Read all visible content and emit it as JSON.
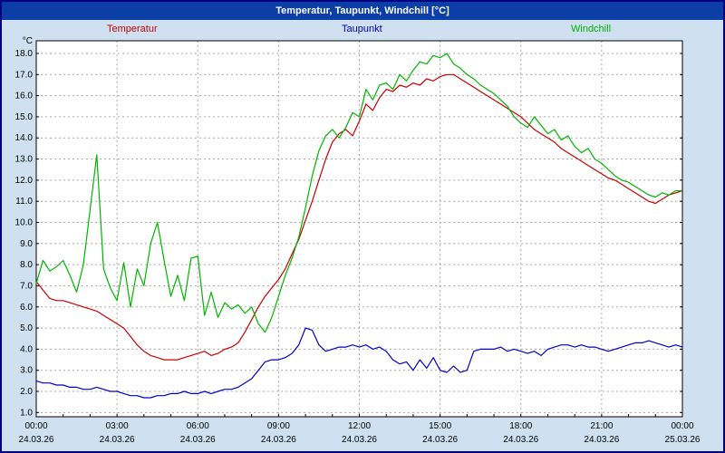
{
  "title": "Temperatur, Taupunkt, Windchill [°C]",
  "legend": [
    {
      "label": "Temperatur",
      "color": "#c80000"
    },
    {
      "label": "Taupunkt",
      "color": "#0000c8"
    },
    {
      "label": "Windchill",
      "color": "#00b400"
    }
  ],
  "colors": {
    "titlebar_bg": "#0b3ea6",
    "titlebar_text": "#ffffff",
    "window_bg": "#cfe0f1",
    "border": "#000080",
    "grid": "#a8a8a8",
    "plot_bg": "#ffffff",
    "axis_text": "#000000"
  },
  "chart_data": {
    "type": "line",
    "title": "Temperatur, Taupunkt, Windchill [°C]",
    "ylabel": "°C",
    "ylim": [
      0.8,
      18.6
    ],
    "yticks": [
      1,
      2,
      3,
      4,
      5,
      6,
      7,
      8,
      9,
      10,
      11,
      12,
      13,
      14,
      15,
      16,
      17,
      18
    ],
    "ytick_format_decimals": 1,
    "grid": true,
    "x_start_hour": 0,
    "x_step_hours": 0.25,
    "x_total_hours": 24,
    "x_tick_labels": [
      "00:00",
      "03:00",
      "06:00",
      "09:00",
      "12:00",
      "15:00",
      "18:00",
      "21:00",
      "00:00"
    ],
    "x_tick_dates": [
      "24.03.26",
      "24.03.26",
      "24.03.26",
      "24.03.26",
      "24.03.26",
      "24.03.26",
      "24.03.26",
      "24.03.26",
      "25.03.26"
    ],
    "series": [
      {
        "name": "Temperatur",
        "color": "#c80000",
        "values": [
          7.2,
          6.8,
          6.4,
          6.3,
          6.3,
          6.2,
          6.1,
          6.0,
          5.9,
          5.8,
          5.6,
          5.4,
          5.2,
          5.0,
          4.6,
          4.2,
          3.9,
          3.7,
          3.6,
          3.5,
          3.5,
          3.5,
          3.6,
          3.7,
          3.8,
          3.9,
          3.7,
          3.8,
          4.0,
          4.1,
          4.3,
          4.8,
          5.4,
          6.0,
          6.5,
          6.9,
          7.3,
          7.8,
          8.5,
          9.2,
          10.1,
          11.0,
          12.0,
          13.0,
          13.8,
          14.2,
          14.4,
          14.1,
          14.8,
          15.6,
          15.3,
          15.9,
          16.3,
          16.2,
          16.5,
          16.4,
          16.6,
          16.5,
          16.8,
          16.7,
          16.9,
          17.0,
          17.0,
          16.8,
          16.6,
          16.4,
          16.2,
          16.0,
          15.8,
          15.6,
          15.4,
          15.2,
          15.0,
          14.7,
          14.4,
          14.2,
          14.0,
          13.8,
          13.5,
          13.3,
          13.1,
          12.9,
          12.7,
          12.5,
          12.3,
          12.1,
          12.0,
          11.8,
          11.6,
          11.4,
          11.2,
          11.0,
          10.9,
          11.1,
          11.3,
          11.4,
          11.5
        ]
      },
      {
        "name": "Taupunkt",
        "color": "#0000c8",
        "values": [
          2.5,
          2.4,
          2.4,
          2.3,
          2.3,
          2.2,
          2.2,
          2.1,
          2.1,
          2.2,
          2.1,
          2.0,
          2.0,
          1.9,
          1.8,
          1.8,
          1.7,
          1.7,
          1.8,
          1.8,
          1.9,
          1.9,
          2.0,
          1.9,
          1.9,
          2.0,
          1.9,
          2.0,
          2.1,
          2.1,
          2.2,
          2.4,
          2.6,
          3.0,
          3.4,
          3.5,
          3.5,
          3.6,
          3.8,
          4.2,
          5.0,
          4.9,
          4.2,
          3.9,
          4.0,
          4.1,
          4.1,
          4.2,
          4.1,
          4.2,
          4.0,
          4.1,
          3.9,
          3.5,
          3.3,
          3.4,
          3.0,
          3.5,
          3.1,
          3.6,
          3.0,
          2.9,
          3.2,
          2.9,
          3.0,
          3.9,
          4.0,
          4.0,
          4.0,
          4.1,
          3.9,
          4.0,
          3.9,
          3.8,
          3.9,
          3.7,
          4.0,
          4.1,
          4.2,
          4.2,
          4.1,
          4.2,
          4.1,
          4.1,
          4.0,
          3.9,
          4.0,
          4.1,
          4.2,
          4.3,
          4.3,
          4.4,
          4.3,
          4.2,
          4.1,
          4.2,
          4.1
        ]
      },
      {
        "name": "Windchill",
        "color": "#00b400",
        "values": [
          7.1,
          8.2,
          7.7,
          7.9,
          8.2,
          7.5,
          6.7,
          8.0,
          10.6,
          13.2,
          7.8,
          6.9,
          6.3,
          8.1,
          6.0,
          7.8,
          7.0,
          9.0,
          10.0,
          8.2,
          6.5,
          7.5,
          6.3,
          8.3,
          8.4,
          5.6,
          6.7,
          5.5,
          6.2,
          5.9,
          6.1,
          5.7,
          6.0,
          5.2,
          4.8,
          5.5,
          6.5,
          7.5,
          8.3,
          9.3,
          10.7,
          12.2,
          13.4,
          14.1,
          14.4,
          14.0,
          14.5,
          15.2,
          15.0,
          16.3,
          15.8,
          16.5,
          16.6,
          16.3,
          17.0,
          16.7,
          17.2,
          17.6,
          17.5,
          17.9,
          17.8,
          18.0,
          17.5,
          17.3,
          17.0,
          16.8,
          16.5,
          16.3,
          16.1,
          15.8,
          15.5,
          15.0,
          14.7,
          14.5,
          15.0,
          14.6,
          14.2,
          14.4,
          13.9,
          14.1,
          13.6,
          13.3,
          13.5,
          13.0,
          12.8,
          12.5,
          12.2,
          12.0,
          11.9,
          11.7,
          11.5,
          11.3,
          11.2,
          11.4,
          11.3,
          11.5,
          11.5
        ]
      }
    ]
  }
}
